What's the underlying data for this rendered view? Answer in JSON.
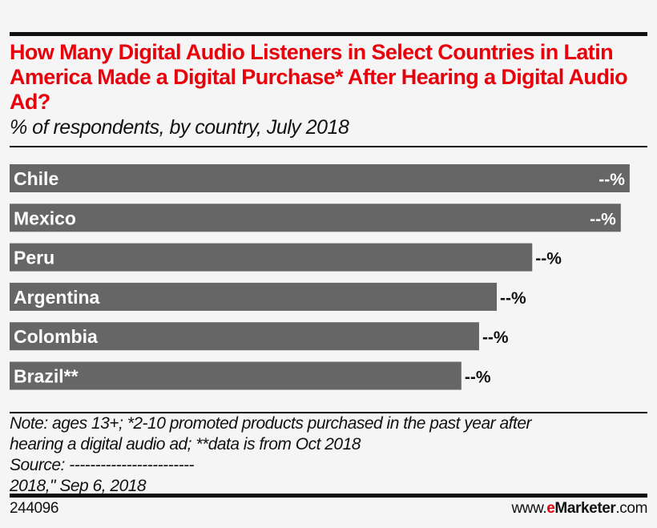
{
  "chart_data": {
    "type": "bar",
    "orientation": "horizontal",
    "title": "How Many Digital Audio Listeners in Select Countries in Latin America Made a Digital Purchase* After Hearing a Digital Audio Ad?",
    "subtitle": "% of respondents, by country, July 2018",
    "categories": [
      "Chile",
      "Mexico",
      "Peru",
      "Argentina",
      "Colombia",
      "Brazil**"
    ],
    "values": [
      70,
      69,
      59,
      55,
      53,
      51
    ],
    "value_labels": [
      "--%",
      "--%",
      "--%",
      "--%",
      "--%",
      "--%"
    ],
    "xlim": [
      0,
      72
    ],
    "grid": false,
    "bar_color": "#666666",
    "title_color": "#e8000b"
  },
  "note_line1": "Note: ages 13+; *2-10 promoted products purchased in the past year after",
  "note_line2": "hearing a digital audio ad; **data is from Oct 2018",
  "source_line1": "Source: ------------------------",
  "source_line2": "2018,\" Sep 6, 2018",
  "chart_id": "244096",
  "brand": {
    "prefix": "www.",
    "e": "e",
    "name": "Marketer",
    "suffix": ".com"
  }
}
